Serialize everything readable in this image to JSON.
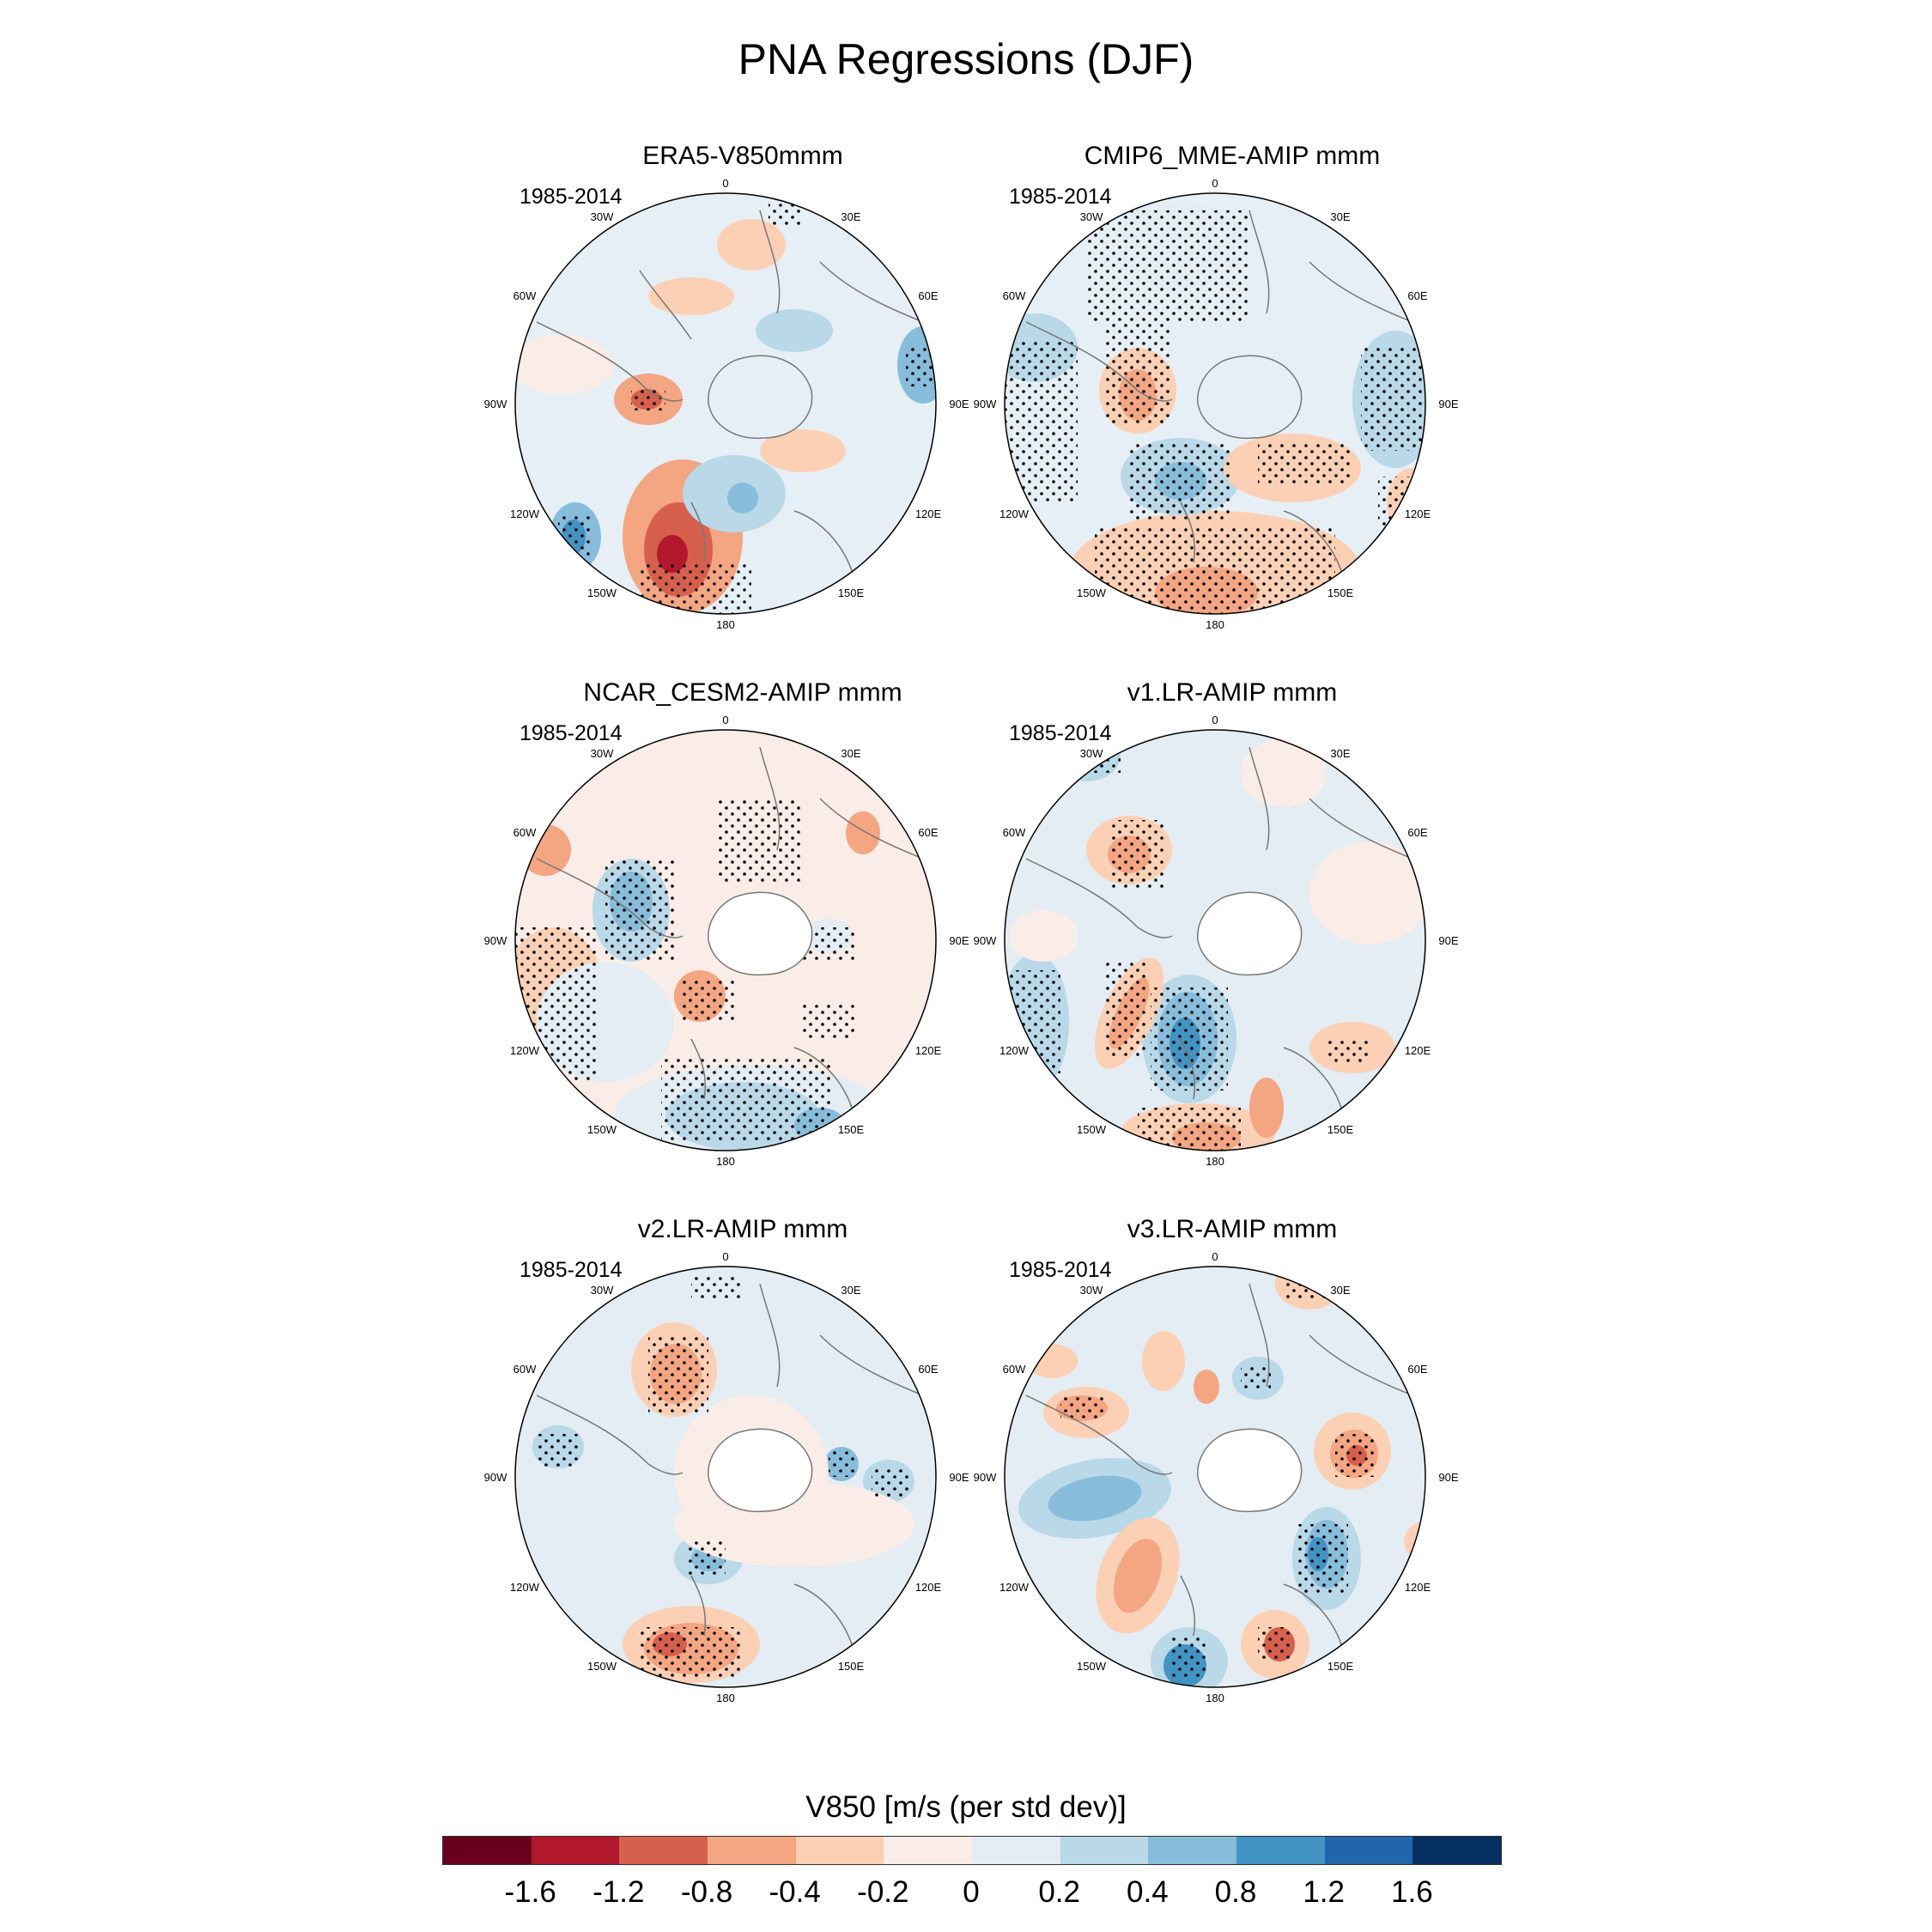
{
  "title": "PNA Regressions (DJF)",
  "period": "1985-2014",
  "lon_labels": [
    "0",
    "30E",
    "60E",
    "90E",
    "120E",
    "150E",
    "180",
    "150W",
    "120W",
    "90W",
    "60W",
    "30W"
  ],
  "panels": [
    {
      "title": "ERA5-V850mmm"
    },
    {
      "title": "CMIP6_MME-AMIP  mmm"
    },
    {
      "title": "NCAR_CESM2-AMIP  mmm"
    },
    {
      "title": "v1.LR-AMIP  mmm"
    },
    {
      "title": "v2.LR-AMIP  mmm"
    },
    {
      "title": "v3.LR-AMIP  mmm"
    }
  ],
  "colorbar": {
    "title": "V850 [m/s (per std dev)]",
    "tick_labels": [
      "-1.6",
      "-1.2",
      "-0.8",
      "-0.4",
      "-0.2",
      "0",
      "0.2",
      "0.4",
      "0.8",
      "1.2",
      "1.6"
    ],
    "colors": [
      "#67001f",
      "#b2182b",
      "#d6604d",
      "#f4a582",
      "#fcd0b5",
      "#faece6",
      "#e3edf3",
      "#b9d8e8",
      "#87bddb",
      "#4393c3",
      "#2166ac",
      "#053061"
    ]
  }
}
